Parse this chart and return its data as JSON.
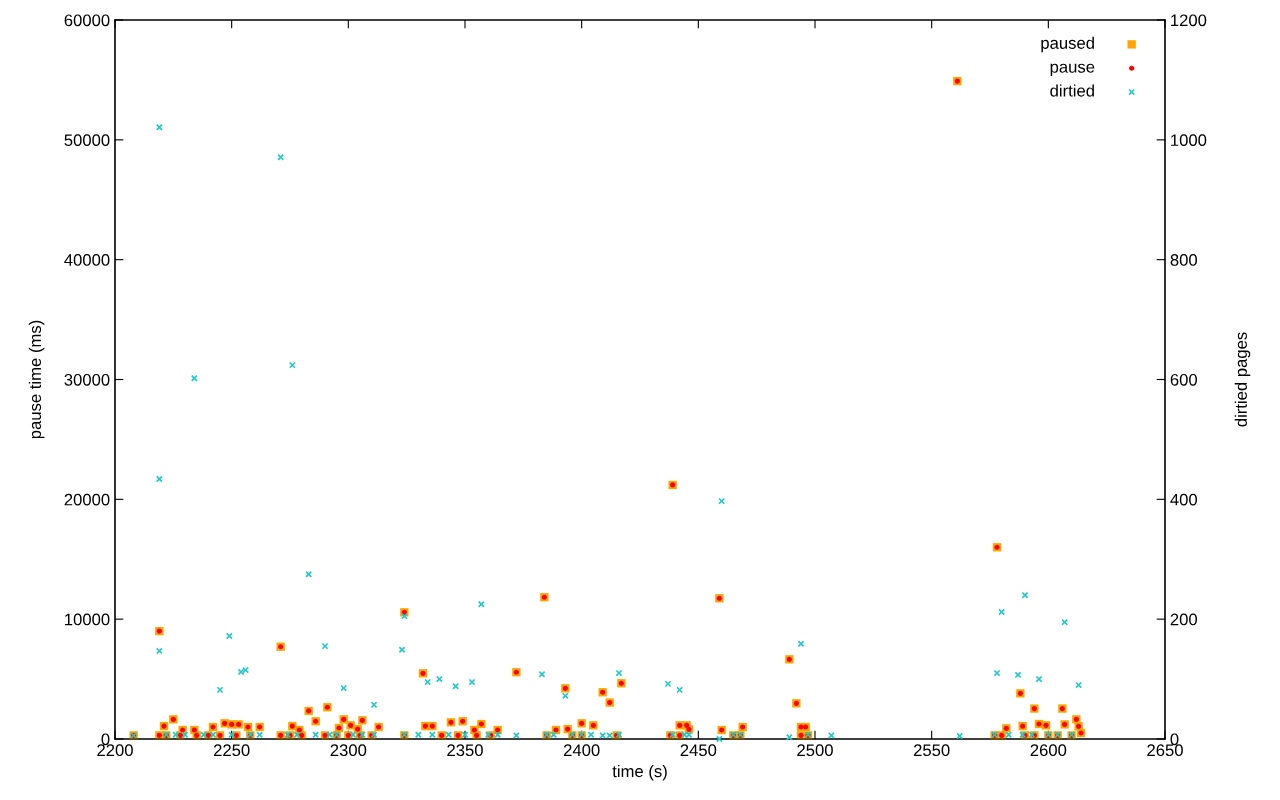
{
  "chart_data": {
    "type": "scatter",
    "xlabel": "time (s)",
    "ylabel": "pause time (ms)",
    "y2label": "dirtied pages",
    "xlim": [
      2200,
      2650
    ],
    "xticks": [
      2200,
      2250,
      2300,
      2350,
      2400,
      2450,
      2500,
      2550,
      2600,
      2650
    ],
    "ylim": [
      0,
      60000
    ],
    "yticks": [
      0,
      10000,
      20000,
      30000,
      40000,
      50000,
      60000
    ],
    "y2lim": [
      0,
      1200
    ],
    "y2ticks": [
      0,
      200,
      400,
      600,
      800,
      1000,
      1200
    ],
    "grid": false,
    "legend": "top right",
    "series": [
      {
        "name": "paused",
        "color": "#ffa500",
        "marker": "square",
        "x": [
          2208,
          2219,
          2219,
          2221,
          2222,
          2225,
          2228,
          2229,
          2234,
          2235,
          2240,
          2242,
          2245,
          2247,
          2250,
          2252,
          2253,
          2257,
          2258,
          2262,
          2271,
          2271,
          2275,
          2276,
          2279,
          2280,
          2283,
          2286,
          2290,
          2291,
          2295,
          2296,
          2298,
          2300,
          2301,
          2304,
          2305,
          2306,
          2310,
          2313,
          2324,
          2324,
          2332,
          2333,
          2336,
          2340,
          2344,
          2347,
          2349,
          2354,
          2355,
          2357,
          2361,
          2364,
          2372,
          2384,
          2385,
          2389,
          2393,
          2394,
          2396,
          2400,
          2400,
          2405,
          2409,
          2412,
          2415,
          2417,
          2439,
          2438,
          2442,
          2442,
          2445,
          2446,
          2459,
          2460,
          2465,
          2468,
          2469,
          2489,
          2492,
          2494,
          2494,
          2496,
          2497,
          2561,
          2578,
          2577,
          2580,
          2582,
          2588,
          2589,
          2590,
          2594,
          2594,
          2596,
          2599,
          2600,
          2604,
          2606,
          2607,
          2610,
          2612,
          2613,
          2614
        ],
        "values": [
          300,
          9000,
          300,
          1080,
          300,
          1640,
          300,
          750,
          750,
          300,
          300,
          1000,
          300,
          1310,
          1220,
          300,
          1220,
          1000,
          300,
          1000,
          7700,
          300,
          300,
          1080,
          750,
          300,
          2340,
          1480,
          300,
          2650,
          300,
          920,
          1640,
          300,
          1140,
          830,
          300,
          1560,
          300,
          1000,
          10570,
          300,
          5480,
          1080,
          1080,
          300,
          1390,
          300,
          1480,
          750,
          300,
          1250,
          300,
          750,
          5570,
          11830,
          300,
          750,
          4230,
          830,
          300,
          1310,
          300,
          1140,
          3900,
          3040,
          300,
          4650,
          21200,
          300,
          1140,
          300,
          1140,
          800,
          11740,
          750,
          300,
          300,
          1000,
          6650,
          2980,
          1000,
          300,
          1000,
          300,
          54900,
          16000,
          300,
          300,
          890,
          3810,
          1080,
          300,
          2540,
          300,
          1250,
          1140,
          300,
          300,
          2540,
          1220,
          300,
          1640,
          1060,
          500
        ]
      },
      {
        "name": "pause",
        "color": "#ff0000",
        "marker": "circle",
        "x": [
          2208,
          2219,
          2219,
          2221,
          2222,
          2225,
          2228,
          2229,
          2234,
          2235,
          2240,
          2242,
          2245,
          2247,
          2250,
          2252,
          2253,
          2257,
          2258,
          2262,
          2271,
          2271,
          2275,
          2276,
          2279,
          2280,
          2283,
          2286,
          2290,
          2291,
          2295,
          2296,
          2298,
          2300,
          2301,
          2304,
          2305,
          2306,
          2310,
          2313,
          2324,
          2324,
          2332,
          2333,
          2336,
          2340,
          2344,
          2347,
          2349,
          2354,
          2355,
          2357,
          2361,
          2364,
          2372,
          2384,
          2385,
          2389,
          2393,
          2394,
          2396,
          2400,
          2400,
          2405,
          2409,
          2412,
          2415,
          2417,
          2439,
          2438,
          2442,
          2442,
          2445,
          2446,
          2459,
          2460,
          2465,
          2468,
          2469,
          2489,
          2492,
          2494,
          2494,
          2496,
          2497,
          2561,
          2578,
          2577,
          2580,
          2582,
          2588,
          2589,
          2590,
          2594,
          2594,
          2596,
          2599,
          2600,
          2604,
          2606,
          2607,
          2610,
          2612,
          2613,
          2614
        ],
        "values": [
          300,
          9000,
          300,
          1080,
          300,
          1640,
          300,
          750,
          750,
          300,
          300,
          1000,
          300,
          1310,
          1220,
          300,
          1220,
          1000,
          300,
          1000,
          7700,
          300,
          300,
          1080,
          750,
          300,
          2340,
          1480,
          300,
          2650,
          300,
          920,
          1640,
          300,
          1140,
          830,
          300,
          1560,
          300,
          1000,
          10570,
          300,
          5480,
          1080,
          1080,
          300,
          1390,
          300,
          1480,
          750,
          300,
          1250,
          300,
          750,
          5570,
          11830,
          300,
          750,
          4230,
          830,
          300,
          1310,
          300,
          1140,
          3900,
          3040,
          300,
          4650,
          21200,
          300,
          1140,
          300,
          1140,
          800,
          11740,
          750,
          300,
          300,
          1000,
          6650,
          2980,
          1000,
          300,
          1000,
          300,
          54900,
          16000,
          300,
          300,
          890,
          3810,
          1080,
          300,
          2540,
          300,
          1250,
          1140,
          300,
          300,
          2540,
          1220,
          300,
          1640,
          1060,
          500
        ]
      },
      {
        "name": "dirtied",
        "color": "#20c8c8",
        "marker": "cross",
        "axis": "y2",
        "x": [
          2208,
          2219,
          2219,
          2219,
          2222,
          2226,
          2230,
          2234,
          2238,
          2242,
          2245,
          2249,
          2250,
          2254,
          2256,
          2258,
          2262,
          2271,
          2274,
          2276,
          2278,
          2283,
          2286,
          2290,
          2292,
          2295,
          2298,
          2302,
          2306,
          2311,
          2311,
          2323,
          2324,
          2324,
          2330,
          2334,
          2336,
          2339,
          2343,
          2346,
          2350,
          2353,
          2357,
          2360,
          2364,
          2372,
          2383,
          2385,
          2388,
          2393,
          2396,
          2400,
          2404,
          2409,
          2412,
          2416,
          2416,
          2437,
          2439,
          2442,
          2444,
          2446,
          2459,
          2460,
          2465,
          2468,
          2489,
          2494,
          2497,
          2507,
          2562,
          2577,
          2578,
          2580,
          2583,
          2587,
          2589,
          2590,
          2593,
          2596,
          2600,
          2604,
          2607,
          2610,
          2613
        ],
        "values": [
          6,
          1021,
          434,
          147,
          7,
          7,
          7,
          602,
          7,
          7,
          82,
          172,
          7,
          112,
          115,
          7,
          7,
          971,
          7,
          624,
          7,
          275,
          7,
          155,
          7,
          7,
          85,
          7,
          7,
          57,
          7,
          149,
          205,
          7,
          7,
          95,
          7,
          100,
          7,
          88,
          7,
          95,
          225,
          7,
          7,
          6,
          108,
          7,
          7,
          72,
          7,
          7,
          7,
          6,
          6,
          110,
          7,
          92,
          7,
          82,
          7,
          7,
          0,
          397,
          7,
          7,
          3,
          159,
          7,
          6,
          5,
          7,
          110,
          212,
          7,
          107,
          7,
          240,
          7,
          100,
          7,
          7,
          195,
          7,
          90
        ]
      }
    ]
  }
}
